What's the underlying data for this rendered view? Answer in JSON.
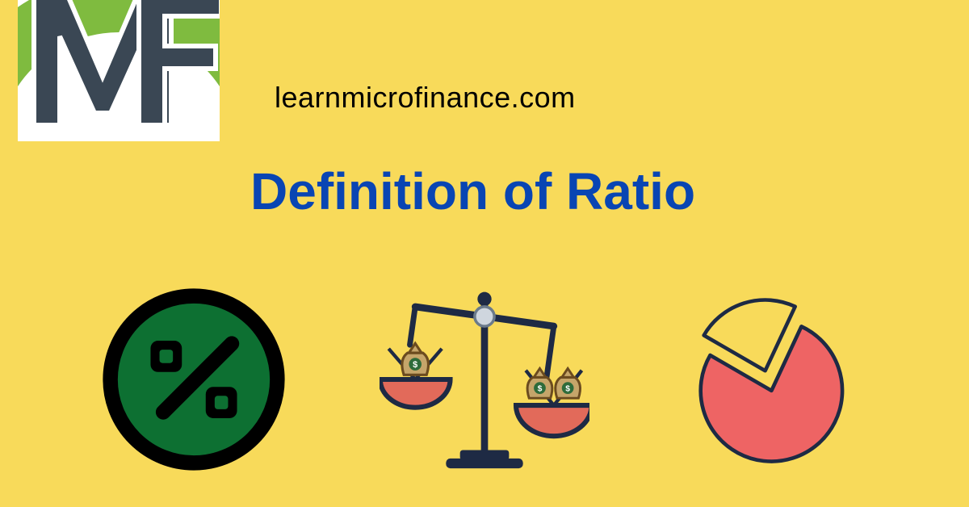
{
  "background_color": "#f8da5a",
  "logo": {
    "bg": "#ffffff",
    "letter_color": "#3a4754",
    "arc_color": "#7fbb3f",
    "text": "MF"
  },
  "site_url": {
    "text": "learnmicrofinance.com",
    "color": "#000000",
    "fontsize": 36,
    "fontweight": 400
  },
  "title": {
    "text": "Definition of Ratio",
    "color": "#0945b3",
    "fontsize": 64,
    "fontweight": 800
  },
  "icons": {
    "percent": {
      "circle_fill": "#0d7032",
      "border": "#000000",
      "symbol_color": "#000000",
      "border_width": 18
    },
    "scale": {
      "frame_color": "#1e2a44",
      "pan_color": "#e26a5a",
      "bag_color": "#c5a56a",
      "bag_outline": "#6b4b1f",
      "dollar_color": "#2d6b3a",
      "pivot_fill": "#cfd6de",
      "pivot_stroke": "#6b7a8a"
    },
    "pie": {
      "body_fill": "#ee6464",
      "body_stroke": "#1e2a44",
      "slice_fill": "#f8da5a",
      "slice_stroke": "#1e2a44",
      "slice_start_deg": 300,
      "slice_end_deg": 25
    }
  }
}
